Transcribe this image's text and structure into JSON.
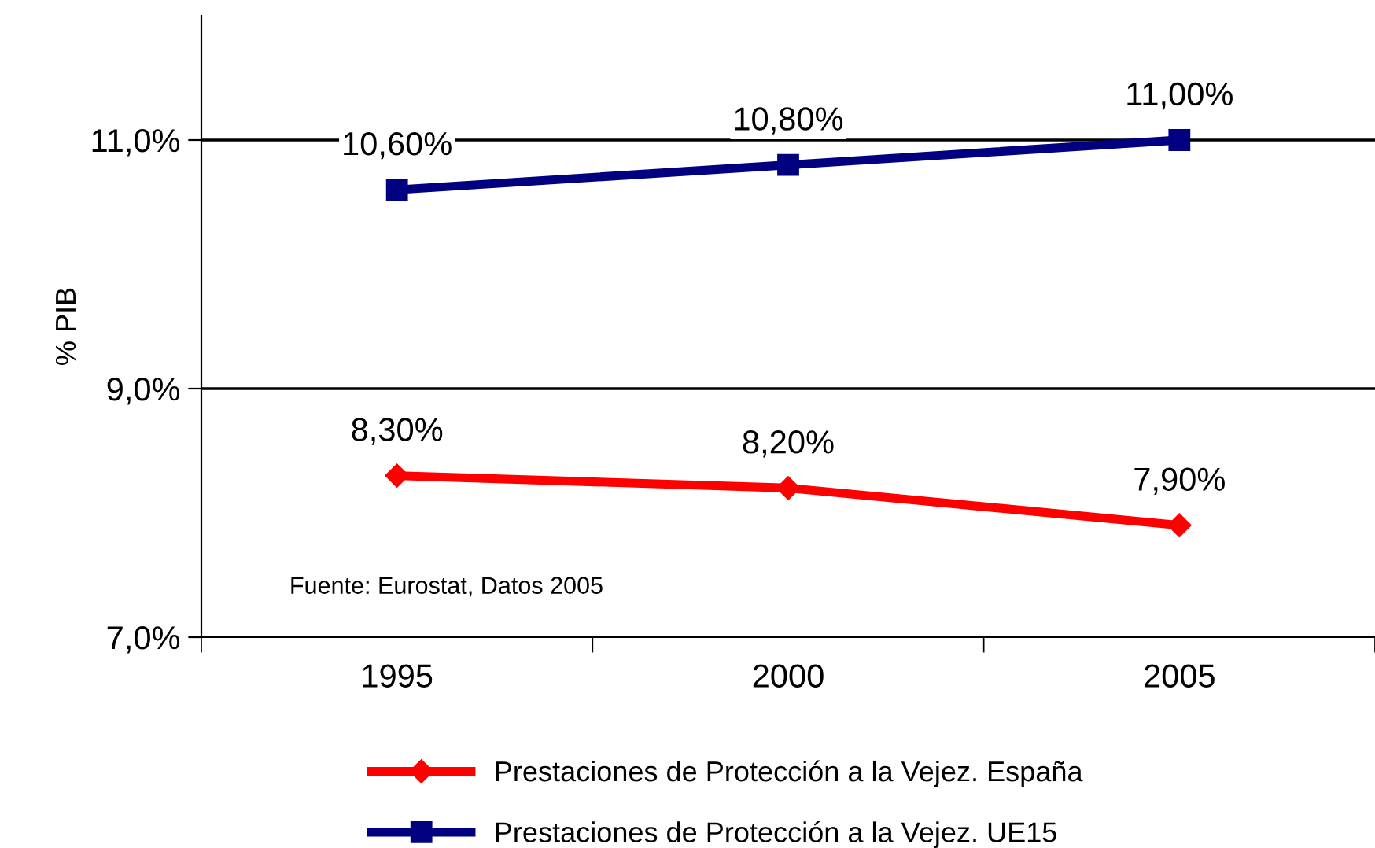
{
  "chart_data": {
    "type": "line",
    "ylabel": "% PIB",
    "categories": [
      "1995",
      "2000",
      "2005"
    ],
    "series": [
      {
        "name": "Prestaciones de Protección a la Vejez. España",
        "color": "#ff0000",
        "marker": "diamond",
        "values": [
          8.3,
          8.2,
          7.9
        ],
        "value_labels": [
          "8,30%",
          "8,20%",
          "7,90%"
        ]
      },
      {
        "name": "Prestaciones de Protección a la Vejez. UE15",
        "color": "#000080",
        "marker": "square",
        "values": [
          10.6,
          10.8,
          11.0
        ],
        "value_labels": [
          "10,60%",
          "10,80%",
          "11,00%"
        ]
      }
    ],
    "ylim": [
      7,
      12
    ],
    "yticks": [
      {
        "value": 7,
        "label": "7,0%"
      },
      {
        "value": 9,
        "label": "9,0%"
      },
      {
        "value": 11,
        "label": "11,0%"
      }
    ],
    "grid": "y",
    "legend": "bottom",
    "line_style": "solid",
    "annotations": [
      "Fuente: Eurostat, Datos 2005"
    ]
  }
}
